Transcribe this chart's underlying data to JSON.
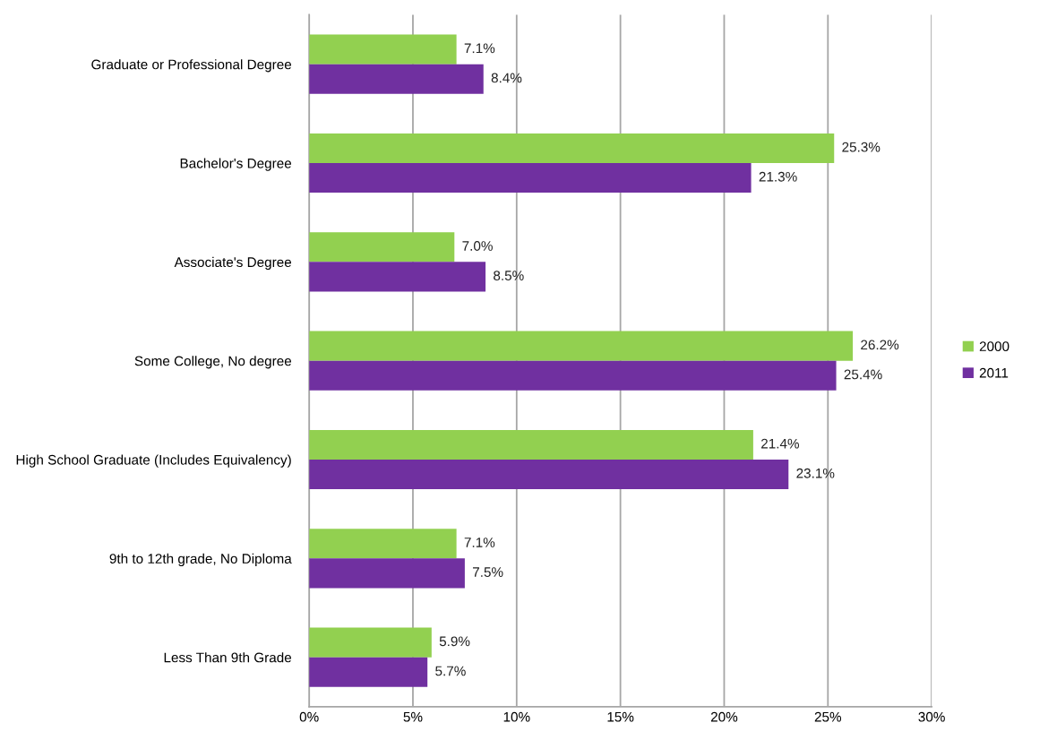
{
  "chart_data": {
    "type": "bar",
    "orientation": "horizontal",
    "categories": [
      "Graduate or Professional Degree",
      "Bachelor's Degree",
      "Associate's Degree",
      "Some College, No degree",
      "High School Graduate (Includes Equivalency)",
      "9th to 12th grade, No Diploma",
      "Less Than 9th Grade"
    ],
    "series": [
      {
        "name": "2000",
        "color": "#92d050",
        "values": [
          7.1,
          25.3,
          7.0,
          26.2,
          21.4,
          7.1,
          5.9
        ],
        "value_labels": [
          "7.1%",
          "25.3%",
          "7.0%",
          "26.2%",
          "21.4%",
          "7.1%",
          "5.9%"
        ]
      },
      {
        "name": "2011",
        "color": "#7030a0",
        "values": [
          8.4,
          21.3,
          8.5,
          25.4,
          23.1,
          7.5,
          5.7
        ],
        "value_labels": [
          "8.4%",
          "21.3%",
          "8.5%",
          "25.4%",
          "23.1%",
          "7.5%",
          "5.7%"
        ]
      }
    ],
    "xlim": [
      0,
      30
    ],
    "xticks": [
      {
        "value": 0,
        "label": "0%"
      },
      {
        "value": 5,
        "label": "5%"
      },
      {
        "value": 10,
        "label": "10%"
      },
      {
        "value": 15,
        "label": "15%"
      },
      {
        "value": 20,
        "label": "20%"
      },
      {
        "value": 25,
        "label": "25%"
      },
      {
        "value": 30,
        "label": "30%"
      }
    ],
    "grid": "x",
    "legend": "right"
  }
}
